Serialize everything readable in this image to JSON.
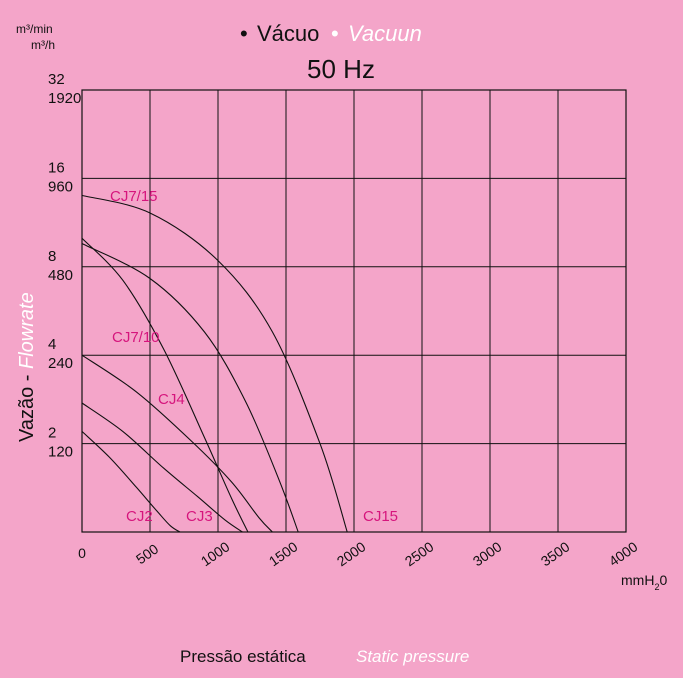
{
  "colors": {
    "background": "#f4a5c9",
    "ink": "#111111",
    "curve_label": "#d6157d",
    "subtitle_accent": "#ffffff"
  },
  "header": {
    "bullet_pt": "•",
    "title_pt": "Vácuo",
    "bullet_en": "•",
    "title_en": "Vacuun",
    "frequency": "50 Hz"
  },
  "units": {
    "flow_top": "m³/min",
    "flow_bottom": "m³/h",
    "pressure": "mmH",
    "pressure_sub": "2",
    "pressure_tail": "0"
  },
  "axis_titles": {
    "y_pt": "Vazão - ",
    "y_en": "Flowrate",
    "x_pt": "Pressão estática",
    "x_en": "Static pressure"
  },
  "chart_data": {
    "type": "line",
    "x_axis": {
      "label": "Pressão estática / Static pressure",
      "unit": "mmH2O",
      "range": [
        0,
        4000
      ],
      "ticks": [
        0,
        500,
        1000,
        1500,
        2000,
        2500,
        3000,
        3500,
        4000
      ],
      "tick_labels": [
        "0",
        "500",
        "1000",
        "1500",
        "2000",
        "2500",
        "3000",
        "3500",
        "4000"
      ]
    },
    "y_axis": {
      "label": "Vazão - Flowrate",
      "scale": "log2",
      "range_m3min": [
        1,
        32
      ],
      "ticks": [
        {
          "m3min": "32",
          "m3h": "1920",
          "value": 32
        },
        {
          "m3min": "16",
          "m3h": "960",
          "value": 16
        },
        {
          "m3min": "8",
          "m3h": "480",
          "value": 8
        },
        {
          "m3min": "4",
          "m3h": "240",
          "value": 4
        },
        {
          "m3min": "2",
          "m3h": "120",
          "value": 2
        }
      ]
    },
    "grid": true,
    "series": [
      {
        "name": "CJ2",
        "x": [
          0,
          200,
          400,
          550,
          650,
          720
        ],
        "y": [
          2.2,
          1.8,
          1.42,
          1.18,
          1.05,
          1.0
        ]
      },
      {
        "name": "CJ3",
        "x": [
          0,
          300,
          600,
          850,
          1050,
          1180
        ],
        "y": [
          2.75,
          2.2,
          1.65,
          1.32,
          1.1,
          1.0
        ]
      },
      {
        "name": "CJ4",
        "x": [
          0,
          400,
          800,
          1100,
          1300,
          1400
        ],
        "y": [
          4.0,
          3.0,
          2.05,
          1.48,
          1.12,
          1.0
        ]
      },
      {
        "name": "CJ7/10",
        "x": [
          0,
          300,
          600,
          900,
          1100,
          1220
        ],
        "y": [
          10.0,
          7.2,
          4.2,
          2.1,
          1.3,
          1.0
        ]
      },
      {
        "name": "CJ7/15",
        "x": [
          0,
          500,
          900,
          1200,
          1450,
          1590
        ],
        "y": [
          9.6,
          7.3,
          4.8,
          2.8,
          1.5,
          1.0
        ]
      },
      {
        "name": "CJ15",
        "x": [
          0,
          500,
          1000,
          1400,
          1750,
          1950
        ],
        "y": [
          14.0,
          12.2,
          8.4,
          4.8,
          2.0,
          1.0
        ]
      }
    ],
    "curve_labels": [
      "CJ7/15",
      "CJ7/10",
      "CJ4",
      "CJ2",
      "CJ3",
      "CJ15"
    ]
  }
}
